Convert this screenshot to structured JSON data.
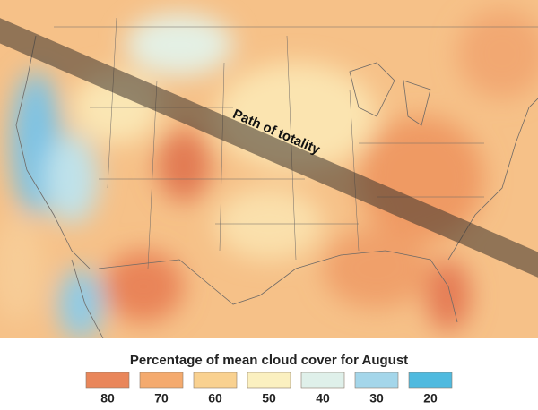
{
  "map": {
    "annotation": "Path of totality",
    "legend": {
      "title": "Percentage of mean cloud cover for August",
      "items": [
        {
          "value": 80,
          "color": "#e9865a"
        },
        {
          "value": 70,
          "color": "#f4aa6e"
        },
        {
          "value": 60,
          "color": "#f9d190"
        },
        {
          "value": 50,
          "color": "#fbf0c0"
        },
        {
          "value": 40,
          "color": "#dff0ea"
        },
        {
          "value": 30,
          "color": "#a4d6ea"
        },
        {
          "value": 20,
          "color": "#4fbadf"
        }
      ]
    }
  }
}
